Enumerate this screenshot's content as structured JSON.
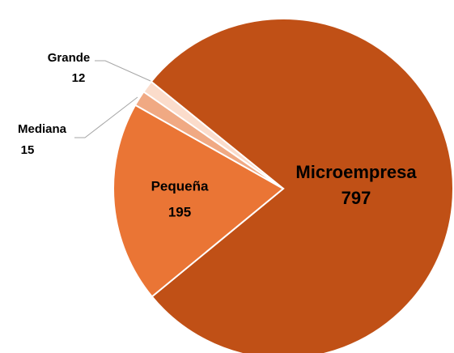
{
  "chart_data": {
    "type": "pie",
    "categories": [
      "Microempresa",
      "Pequeña",
      "Mediana",
      "Grande"
    ],
    "values": [
      797,
      195,
      15,
      12
    ],
    "colors": [
      "#c05016",
      "#ea7535",
      "#f0a983",
      "#fbdccb"
    ]
  }
}
